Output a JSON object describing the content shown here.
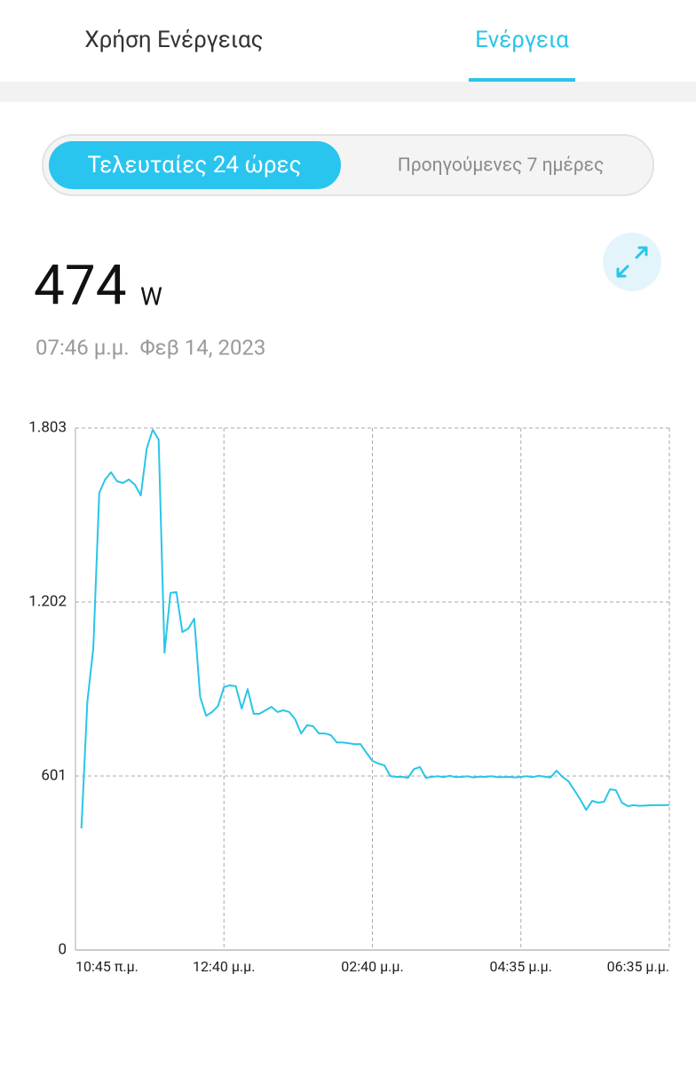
{
  "tabs": [
    "Χρήση Ενέργειας",
    "Ενέργεια"
  ],
  "range_selector": [
    "Τελευταίες 24 ώρες",
    "Προηγούμενες 7 ημέρες"
  ],
  "reading": {
    "value": 474,
    "unit": "W",
    "timestamp": "07:46 μ.μ.  Φεβ 14, 2023"
  },
  "chart_data": {
    "type": "line",
    "color": "#29c5e8",
    "grid": true,
    "xlim": [
      0,
      100
    ],
    "xticks": [
      {
        "value": 0,
        "label": "10:45 π.μ."
      },
      {
        "value": 25,
        "label": "12:40 μ.μ."
      },
      {
        "value": 50,
        "label": "02:40 μ.μ."
      },
      {
        "value": 75,
        "label": "04:35 μ.μ."
      },
      {
        "value": 100,
        "label": "06:35 μ.μ."
      }
    ],
    "ylim": [
      0,
      1803
    ],
    "yticks": [
      0,
      601,
      {
        "value": 1202,
        "label": "1.202"
      },
      {
        "value": 1803,
        "label": "1.803"
      }
    ],
    "values": [
      null,
      420,
      858,
      1042,
      1579,
      1625,
      1650,
      1619,
      1613,
      1625,
      1607,
      1570,
      1732,
      1797,
      1763,
      1027,
      1233,
      1236,
      1098,
      1110,
      1144,
      874,
      809,
      822,
      843,
      908,
      914,
      911,
      834,
      901,
      816,
      816,
      828,
      840,
      822,
      828,
      822,
      797,
      748,
      776,
      773,
      748,
      748,
      742,
      717,
      717,
      714,
      711,
      711,
      681,
      653,
      644,
      638,
      601,
      598,
      598,
      595,
      625,
      632,
      595,
      598,
      600,
      597,
      602,
      597,
      598,
      600,
      596,
      599,
      598,
      600,
      597,
      597,
      598,
      596,
      598,
      600,
      597,
      602,
      599,
      596,
      619,
      598,
      583,
      552,
      520,
      484,
      515,
      509,
      512,
      555,
      552,
      509,
      497,
      500,
      498,
      499,
      500,
      500,
      500,
      501
    ]
  }
}
